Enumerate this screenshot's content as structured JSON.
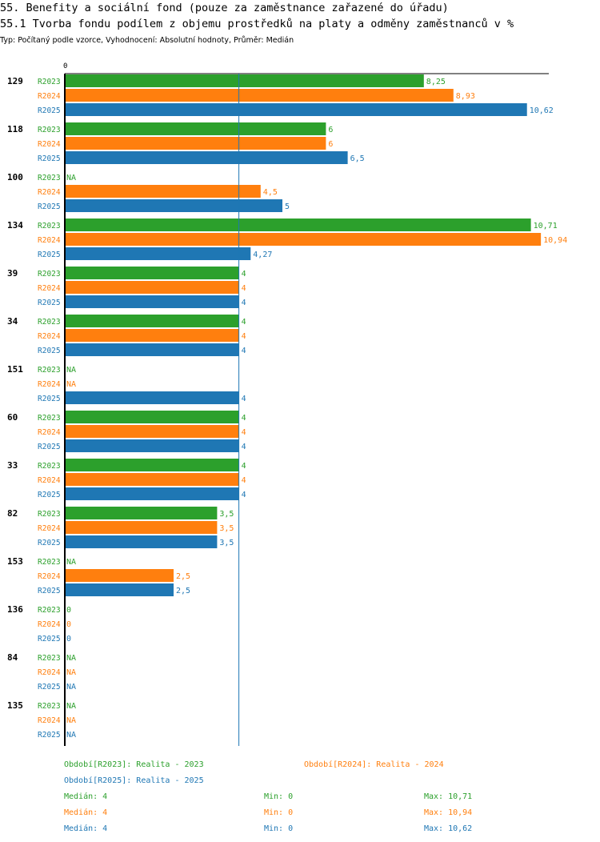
{
  "header": {
    "title": "55. Benefity a sociální fond (pouze za zaměstnance zařazené do úřadu)",
    "subtitle": "55.1 Tvorba fondu podílem z objemu prostředků na platy a odměny zaměstnanců v %",
    "meta": "Typ: Počítaný podle vzorce, Vyhodnocení: Absolutní hodnoty, Průměr: Medián"
  },
  "colors": {
    "R2023": "#2ca02c",
    "R2024": "#ff7f0e",
    "R2025": "#1f77b4",
    "median_line": "#1f77b4",
    "axis": "#000000"
  },
  "chart_data": {
    "type": "bar",
    "orientation": "horizontal",
    "axis_zero_label": "0",
    "xlim": [
      0,
      11
    ],
    "median_line": 4,
    "series": [
      "R2023",
      "R2024",
      "R2025"
    ],
    "groups": [
      {
        "id": "129",
        "values": [
          8.25,
          8.93,
          10.62
        ],
        "labels": [
          "8,25",
          "8,93",
          "10,62"
        ]
      },
      {
        "id": "118",
        "values": [
          6,
          6,
          6.5
        ],
        "labels": [
          "6",
          "6",
          "6,5"
        ]
      },
      {
        "id": "100",
        "values": [
          null,
          4.5,
          5
        ],
        "labels": [
          "NA",
          "4,5",
          "5"
        ]
      },
      {
        "id": "134",
        "values": [
          10.71,
          10.94,
          4.27
        ],
        "labels": [
          "10,71",
          "10,94",
          "4,27"
        ]
      },
      {
        "id": "39",
        "values": [
          4,
          4,
          4
        ],
        "labels": [
          "4",
          "4",
          "4"
        ]
      },
      {
        "id": "34",
        "values": [
          4,
          4,
          4
        ],
        "labels": [
          "4",
          "4",
          "4"
        ]
      },
      {
        "id": "151",
        "values": [
          null,
          null,
          4
        ],
        "labels": [
          "NA",
          "NA",
          "4"
        ]
      },
      {
        "id": "60",
        "values": [
          4,
          4,
          4
        ],
        "labels": [
          "4",
          "4",
          "4"
        ]
      },
      {
        "id": "33",
        "values": [
          4,
          4,
          4
        ],
        "labels": [
          "4",
          "4",
          "4"
        ]
      },
      {
        "id": "82",
        "values": [
          3.5,
          3.5,
          3.5
        ],
        "labels": [
          "3,5",
          "3,5",
          "3,5"
        ]
      },
      {
        "id": "153",
        "values": [
          null,
          2.5,
          2.5
        ],
        "labels": [
          "NA",
          "2,5",
          "2,5"
        ]
      },
      {
        "id": "136",
        "values": [
          0,
          0,
          0
        ],
        "labels": [
          "0",
          "0",
          "0"
        ]
      },
      {
        "id": "84",
        "values": [
          null,
          null,
          null
        ],
        "labels": [
          "NA",
          "NA",
          "NA"
        ]
      },
      {
        "id": "135",
        "values": [
          null,
          null,
          null
        ],
        "labels": [
          "NA",
          "NA",
          "NA"
        ]
      }
    ]
  },
  "legend": {
    "periods": [
      {
        "series": "R2023",
        "text": "Období[R2023]: Realita - 2023"
      },
      {
        "series": "R2024",
        "text": "Období[R2024]: Realita - 2024"
      },
      {
        "series": "R2025",
        "text": "Období[R2025]: Realita - 2025"
      }
    ],
    "stats": [
      {
        "series": "R2023",
        "median": "Medián: 4",
        "min": "Min: 0",
        "max": "Max: 10,71"
      },
      {
        "series": "R2024",
        "median": "Medián: 4",
        "min": "Min: 0",
        "max": "Max: 10,94"
      },
      {
        "series": "R2025",
        "median": "Medián: 4",
        "min": "Min: 0",
        "max": "Max: 10,62"
      }
    ]
  }
}
